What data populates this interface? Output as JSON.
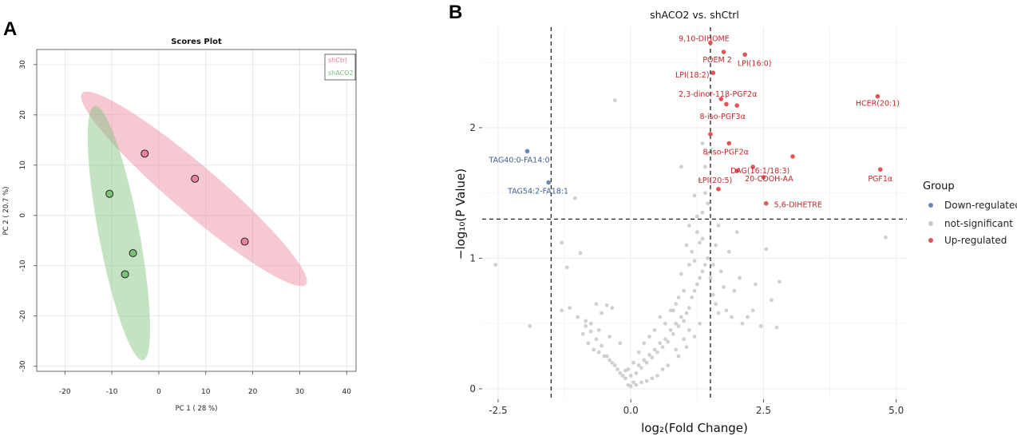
{
  "panel_a": {
    "label": "A",
    "chart_data": {
      "type": "scatter",
      "title": "Scores Plot",
      "xlabel": "PC 1 ( 28 %)",
      "ylabel": "PC 2 ( 20.7 %)",
      "xlim": [
        -26,
        42
      ],
      "ylim": [
        -31,
        33
      ],
      "x_ticks": [
        -20,
        -10,
        0,
        10,
        20,
        30,
        40
      ],
      "y_ticks": [
        -30,
        -20,
        -10,
        0,
        10,
        20,
        30
      ],
      "legend": [
        "shCtrl",
        "shACO2"
      ],
      "colors": {
        "shCtrl": "#e8849c",
        "shACO2": "#7cc17a",
        "shCtrl_text": "#e07a95",
        "shACO2_text": "#7ab97a"
      },
      "series": [
        {
          "name": "shCtrl",
          "points": [
            [
              -3,
              12.3
            ],
            [
              7.7,
              7.3
            ],
            [
              18.3,
              -5.2
            ]
          ],
          "ellipse": {
            "cx": 7.5,
            "cy": 5.3,
            "semi_major": 30.5,
            "semi_minor": 4.8,
            "angle_deg": -38.5
          }
        },
        {
          "name": "shACO2",
          "points": [
            [
              -10.5,
              4.3
            ],
            [
              -5.5,
              -7.5
            ],
            [
              -7.2,
              -11.7
            ]
          ],
          "ellipse": {
            "cx": -8.5,
            "cy": -3.5,
            "semi_major": 25.8,
            "semi_minor": 4.3,
            "angle_deg": -78.5
          }
        }
      ]
    }
  },
  "panel_b": {
    "label": "B",
    "chart_data": {
      "type": "scatter",
      "title": "shACO2  vs. shCtrl",
      "xlabel": "log₂(Fold Change)",
      "ylabel": "−log₁₀(P Value)",
      "xlim": [
        -2.8,
        5.2
      ],
      "ylim": [
        -0.08,
        2.77
      ],
      "x_ticks": [
        "-2.5",
        "0.0",
        "2.5",
        "5.0"
      ],
      "y_ticks": [
        "0",
        "1",
        "2"
      ],
      "thresholds": {
        "x": [
          -1.5,
          1.5
        ],
        "y": 1.3
      },
      "legend_title": "Group",
      "legend": [
        "Down-regulated",
        "not-significant",
        "Up-regulated"
      ],
      "colors": {
        "up": "#e05555",
        "down": "#6b87b8",
        "ns": "#c8c8c8",
        "up_text": "#c0272d",
        "down_text": "#3f5f8f"
      },
      "up_points": [
        {
          "x": 1.5,
          "y": 2.65,
          "label": "9,10-DIHOME"
        },
        {
          "x": 1.75,
          "y": 2.58,
          "label": "POEM 2"
        },
        {
          "x": 2.15,
          "y": 2.56,
          "label": "LPI(16:0)"
        },
        {
          "x": 1.55,
          "y": 2.42,
          "label": "LPI(18:2)"
        },
        {
          "x": 1.7,
          "y": 2.22,
          "label": "2,3-dinor-11β-PGF2α"
        },
        {
          "x": 4.65,
          "y": 2.24,
          "label": "HCER(20:1)"
        },
        {
          "x": 1.8,
          "y": 2.18,
          "label": ""
        },
        {
          "x": 2.0,
          "y": 2.17,
          "label": "8-iso-PGF3α"
        },
        {
          "x": 1.5,
          "y": 1.95,
          "label": ""
        },
        {
          "x": 1.85,
          "y": 1.88,
          "label": "8-iso-PGF2α"
        },
        {
          "x": 3.05,
          "y": 1.78,
          "label": ""
        },
        {
          "x": 2.3,
          "y": 1.7,
          "label": "DAG(16:1/18:3)"
        },
        {
          "x": 4.7,
          "y": 1.68,
          "label": "PGF1α"
        },
        {
          "x": 2.0,
          "y": 1.67,
          "label": ""
        },
        {
          "x": 2.5,
          "y": 1.62,
          "label": "20-COOH-AA"
        },
        {
          "x": 1.65,
          "y": 1.53,
          "label": "LPI(20:5)"
        },
        {
          "x": 2.55,
          "y": 1.42,
          "label": "5,6-DIHETRE"
        }
      ],
      "down_points": [
        {
          "x": -1.95,
          "y": 1.82,
          "label": "TAG40:0-FA14:0"
        },
        {
          "x": -1.55,
          "y": 1.58,
          "label": "TAG54:2-FA18:1"
        }
      ],
      "labels": [
        "9,10-DIHOME",
        "POEM 2",
        "LPI(16:0)",
        "LPI(18:2)",
        "2,3-dinor-11β-PGF2α",
        "HCER(20:1)",
        "8-iso-PGF3α",
        "8-iso-PGF2α",
        "DAG(16:1/18:3)",
        "PGF1α",
        "20-COOH-AA",
        "LPI(20:5)",
        "5,6-DIHETRE",
        "TAG40:0-FA14:0",
        "TAG54:2-FA18:1"
      ],
      "ns_points": [
        [
          -2.55,
          0.95
        ],
        [
          -1.9,
          0.48
        ],
        [
          -1.3,
          1.12
        ],
        [
          -1.2,
          0.93
        ],
        [
          -1.15,
          0.62
        ],
        [
          -1.3,
          0.6
        ],
        [
          -1.05,
          1.46
        ],
        [
          -0.95,
          1.04
        ],
        [
          -1.0,
          0.55
        ],
        [
          -0.85,
          0.52
        ],
        [
          -0.75,
          0.5
        ],
        [
          -0.65,
          0.65
        ],
        [
          -0.55,
          0.58
        ],
        [
          -0.45,
          0.64
        ],
        [
          -0.35,
          0.62
        ],
        [
          -0.9,
          0.42
        ],
        [
          -0.8,
          0.35
        ],
        [
          -0.7,
          0.3
        ],
        [
          -0.6,
          0.28
        ],
        [
          -0.5,
          0.25
        ],
        [
          -0.4,
          0.22
        ],
        [
          -0.3,
          0.18
        ],
        [
          -0.2,
          0.12
        ],
        [
          -0.1,
          0.08
        ],
        [
          -0.05,
          0.03
        ],
        [
          0.0,
          0.02
        ],
        [
          0.05,
          0.05
        ],
        [
          -0.15,
          0.1
        ],
        [
          -0.25,
          0.15
        ],
        [
          -0.35,
          0.2
        ],
        [
          -0.45,
          0.25
        ],
        [
          -0.55,
          0.33
        ],
        [
          -0.65,
          0.38
        ],
        [
          -0.75,
          0.44
        ],
        [
          -0.85,
          0.48
        ],
        [
          -0.6,
          0.45
        ],
        [
          -0.4,
          0.4
        ],
        [
          -0.2,
          0.35
        ],
        [
          -0.1,
          0.14
        ],
        [
          0.1,
          0.12
        ],
        [
          0.15,
          0.18
        ],
        [
          0.2,
          0.16
        ],
        [
          0.25,
          0.22
        ],
        [
          0.3,
          0.2
        ],
        [
          0.35,
          0.26
        ],
        [
          0.4,
          0.24
        ],
        [
          0.45,
          0.3
        ],
        [
          0.5,
          0.28
        ],
        [
          0.55,
          0.35
        ],
        [
          0.6,
          0.32
        ],
        [
          0.65,
          0.38
        ],
        [
          0.7,
          0.36
        ],
        [
          0.75,
          0.45
        ],
        [
          0.8,
          0.42
        ],
        [
          0.85,
          0.5
        ],
        [
          0.9,
          0.48
        ],
        [
          0.95,
          0.55
        ],
        [
          1.0,
          0.52
        ],
        [
          1.05,
          0.58
        ],
        [
          1.1,
          0.62
        ],
        [
          1.15,
          0.7
        ],
        [
          1.2,
          0.75
        ],
        [
          1.25,
          0.8
        ],
        [
          1.3,
          0.85
        ],
        [
          1.35,
          0.9
        ],
        [
          1.4,
          0.95
        ],
        [
          1.45,
          1.0
        ],
        [
          1.3,
          1.12
        ],
        [
          1.25,
          1.2
        ],
        [
          1.35,
          1.15
        ],
        [
          1.2,
          0.98
        ],
        [
          1.15,
          1.05
        ],
        [
          1.1,
          0.95
        ],
        [
          0.95,
          0.88
        ],
        [
          1.0,
          0.75
        ],
        [
          0.9,
          0.7
        ],
        [
          0.85,
          0.65
        ],
        [
          0.8,
          0.6
        ],
        [
          1.05,
          1.1
        ],
        [
          1.1,
          1.25
        ],
        [
          1.4,
          1.5
        ],
        [
          1.45,
          1.42
        ],
        [
          1.35,
          1.35
        ],
        [
          1.25,
          1.32
        ],
        [
          1.3,
          1.6
        ],
        [
          1.4,
          1.7
        ],
        [
          1.35,
          1.88
        ],
        [
          1.45,
          1.8
        ],
        [
          1.2,
          1.48
        ],
        [
          0.95,
          1.7
        ],
        [
          1.1,
          0.45
        ],
        [
          1.2,
          0.4
        ],
        [
          1.3,
          0.5
        ],
        [
          0.7,
          0.18
        ],
        [
          0.6,
          0.15
        ],
        [
          0.5,
          0.1
        ],
        [
          0.4,
          0.08
        ],
        [
          0.3,
          0.06
        ],
        [
          0.2,
          0.05
        ],
        [
          0.1,
          0.03
        ],
        [
          -0.3,
          2.21
        ],
        [
          1.6,
          0.65
        ],
        [
          1.7,
          0.9
        ],
        [
          1.75,
          0.78
        ],
        [
          1.8,
          0.6
        ],
        [
          1.85,
          1.05
        ],
        [
          1.9,
          0.55
        ],
        [
          1.95,
          0.75
        ],
        [
          2.0,
          1.2
        ],
        [
          2.05,
          0.85
        ],
        [
          2.1,
          0.5
        ],
        [
          2.2,
          0.55
        ],
        [
          2.35,
          0.8
        ],
        [
          2.45,
          0.48
        ],
        [
          2.55,
          1.07
        ],
        [
          2.65,
          0.68
        ],
        [
          2.75,
          0.47
        ],
        [
          2.8,
          0.82
        ],
        [
          2.3,
          0.6
        ],
        [
          1.65,
          1.25
        ],
        [
          1.55,
          0.95
        ],
        [
          1.6,
          1.1
        ],
        [
          4.8,
          1.16
        ],
        [
          1.5,
          0.85
        ],
        [
          1.55,
          0.72
        ],
        [
          1.65,
          0.58
        ],
        [
          -0.05,
          0.15
        ],
        [
          0.0,
          0.1
        ],
        [
          0.05,
          0.2
        ],
        [
          0.15,
          0.28
        ],
        [
          0.25,
          0.35
        ],
        [
          0.35,
          0.4
        ],
        [
          0.45,
          0.45
        ],
        [
          0.55,
          0.55
        ],
        [
          0.65,
          0.5
        ],
        [
          0.75,
          0.6
        ],
        [
          0.85,
          0.3
        ],
        [
          0.9,
          0.25
        ],
        [
          1.0,
          0.38
        ],
        [
          1.05,
          0.32
        ]
      ]
    }
  }
}
